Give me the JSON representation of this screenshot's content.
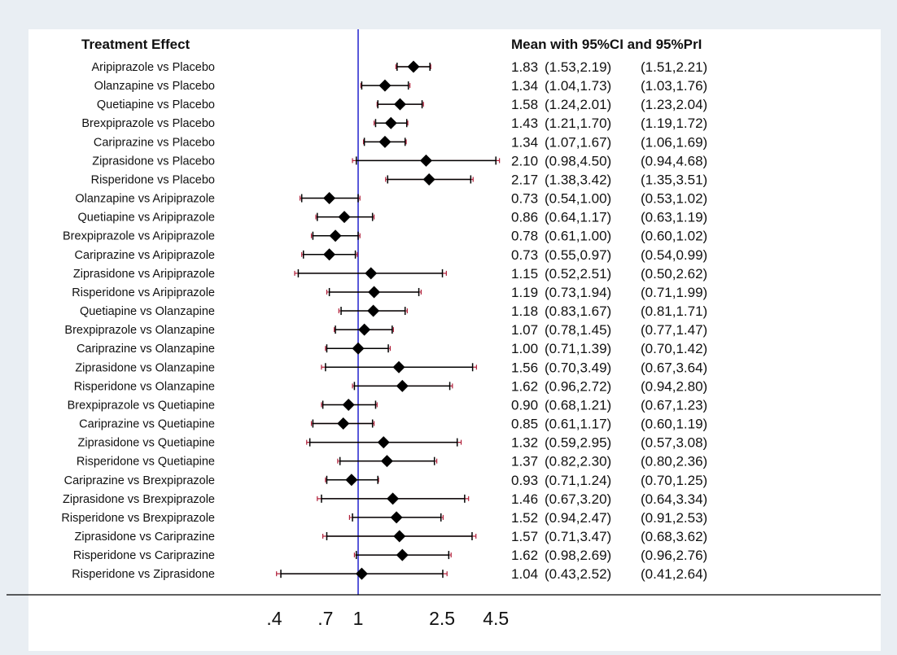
{
  "header": {
    "left": "Treatment Effect",
    "right": "Mean with 95%CI and 95%PrI"
  },
  "colors": {
    "background": "#e9eef3",
    "plot_background": "#ffffff",
    "reference_line": "#2f2fd0",
    "ci_line": "#000000",
    "pri_line": "#b0203a",
    "marker": "#000000"
  },
  "chart_data": {
    "type": "forest",
    "x_scale": "log",
    "reference_value": 1,
    "xlim": [
      0.4,
      4.5
    ],
    "xticks": [
      0.4,
      0.7,
      1,
      2.5,
      4.5
    ],
    "xtick_labels": [
      ".4",
      ".7",
      "1",
      "2.5",
      "4.5"
    ],
    "rows": [
      {
        "label": "Aripiprazole vs Placebo",
        "mean": 1.83,
        "ci": [
          1.53,
          2.19
        ],
        "pri": [
          1.51,
          2.21
        ],
        "mean_text": "1.83",
        "ci_text": "(1.53,2.19)",
        "pri_text": "(1.51,2.21)"
      },
      {
        "label": "Olanzapine vs Placebo",
        "mean": 1.34,
        "ci": [
          1.04,
          1.73
        ],
        "pri": [
          1.03,
          1.76
        ],
        "mean_text": "1.34",
        "ci_text": "(1.04,1.73)",
        "pri_text": "(1.03,1.76)"
      },
      {
        "label": "Quetiapine vs Placebo",
        "mean": 1.58,
        "ci": [
          1.24,
          2.01
        ],
        "pri": [
          1.23,
          2.04
        ],
        "mean_text": "1.58",
        "ci_text": "(1.24,2.01)",
        "pri_text": "(1.23,2.04)"
      },
      {
        "label": "Brexpiprazole vs Placebo",
        "mean": 1.43,
        "ci": [
          1.21,
          1.7
        ],
        "pri": [
          1.19,
          1.72
        ],
        "mean_text": "1.43",
        "ci_text": "(1.21,1.70)",
        "pri_text": "(1.19,1.72)"
      },
      {
        "label": "Cariprazine vs Placebo",
        "mean": 1.34,
        "ci": [
          1.07,
          1.67
        ],
        "pri": [
          1.06,
          1.69
        ],
        "mean_text": "1.34",
        "ci_text": "(1.07,1.67)",
        "pri_text": "(1.06,1.69)"
      },
      {
        "label": "Ziprasidone vs Placebo",
        "mean": 2.1,
        "ci": [
          0.98,
          4.5
        ],
        "pri": [
          0.94,
          4.68
        ],
        "mean_text": "2.10",
        "ci_text": "(0.98,4.50)",
        "pri_text": "(0.94,4.68)"
      },
      {
        "label": "Risperidone vs Placebo",
        "mean": 2.17,
        "ci": [
          1.38,
          3.42
        ],
        "pri": [
          1.35,
          3.51
        ],
        "mean_text": "2.17",
        "ci_text": "(1.38,3.42)",
        "pri_text": "(1.35,3.51)"
      },
      {
        "label": "Olanzapine vs Aripiprazole",
        "mean": 0.73,
        "ci": [
          0.54,
          1.0
        ],
        "pri": [
          0.53,
          1.02
        ],
        "mean_text": "0.73",
        "ci_text": "(0.54,1.00)",
        "pri_text": "(0.53,1.02)"
      },
      {
        "label": "Quetiapine vs Aripiprazole",
        "mean": 0.86,
        "ci": [
          0.64,
          1.17
        ],
        "pri": [
          0.63,
          1.19
        ],
        "mean_text": "0.86",
        "ci_text": "(0.64,1.17)",
        "pri_text": "(0.63,1.19)"
      },
      {
        "label": "Brexpiprazole vs Aripiprazole",
        "mean": 0.78,
        "ci": [
          0.61,
          1.0
        ],
        "pri": [
          0.6,
          1.02
        ],
        "mean_text": "0.78",
        "ci_text": "(0.61,1.00)",
        "pri_text": "(0.60,1.02)"
      },
      {
        "label": "Cariprazine vs Aripiprazole",
        "mean": 0.73,
        "ci": [
          0.55,
          0.97
        ],
        "pri": [
          0.54,
          0.99
        ],
        "mean_text": "0.73",
        "ci_text": "(0.55,0.97)",
        "pri_text": "(0.54,0.99)"
      },
      {
        "label": "Ziprasidone vs Aripiprazole",
        "mean": 1.15,
        "ci": [
          0.52,
          2.51
        ],
        "pri": [
          0.5,
          2.62
        ],
        "mean_text": "1.15",
        "ci_text": "(0.52,2.51)",
        "pri_text": "(0.50,2.62)"
      },
      {
        "label": "Risperidone vs Aripiprazole",
        "mean": 1.19,
        "ci": [
          0.73,
          1.94
        ],
        "pri": [
          0.71,
          1.99
        ],
        "mean_text": "1.19",
        "ci_text": "(0.73,1.94)",
        "pri_text": "(0.71,1.99)"
      },
      {
        "label": "Quetiapine vs Olanzapine",
        "mean": 1.18,
        "ci": [
          0.83,
          1.67
        ],
        "pri": [
          0.81,
          1.71
        ],
        "mean_text": "1.18",
        "ci_text": "(0.83,1.67)",
        "pri_text": "(0.81,1.71)"
      },
      {
        "label": "Brexpiprazole vs Olanzapine",
        "mean": 1.07,
        "ci": [
          0.78,
          1.45
        ],
        "pri": [
          0.77,
          1.47
        ],
        "mean_text": "1.07",
        "ci_text": "(0.78,1.45)",
        "pri_text": "(0.77,1.47)"
      },
      {
        "label": "Cariprazine vs Olanzapine",
        "mean": 1.0,
        "ci": [
          0.71,
          1.39
        ],
        "pri": [
          0.7,
          1.42
        ],
        "mean_text": "1.00",
        "ci_text": "(0.71,1.39)",
        "pri_text": "(0.70,1.42)"
      },
      {
        "label": "Ziprasidone vs Olanzapine",
        "mean": 1.56,
        "ci": [
          0.7,
          3.49
        ],
        "pri": [
          0.67,
          3.64
        ],
        "mean_text": "1.56",
        "ci_text": "(0.70,3.49)",
        "pri_text": "(0.67,3.64)"
      },
      {
        "label": "Risperidone vs Olanzapine",
        "mean": 1.62,
        "ci": [
          0.96,
          2.72
        ],
        "pri": [
          0.94,
          2.8
        ],
        "mean_text": "1.62",
        "ci_text": "(0.96,2.72)",
        "pri_text": "(0.94,2.80)"
      },
      {
        "label": "Brexpiprazole vs Quetiapine",
        "mean": 0.9,
        "ci": [
          0.68,
          1.21
        ],
        "pri": [
          0.67,
          1.23
        ],
        "mean_text": "0.90",
        "ci_text": "(0.68,1.21)",
        "pri_text": "(0.67,1.23)"
      },
      {
        "label": "Cariprazine vs Quetiapine",
        "mean": 0.85,
        "ci": [
          0.61,
          1.17
        ],
        "pri": [
          0.6,
          1.19
        ],
        "mean_text": "0.85",
        "ci_text": "(0.61,1.17)",
        "pri_text": "(0.60,1.19)"
      },
      {
        "label": "Ziprasidone vs Quetiapine",
        "mean": 1.32,
        "ci": [
          0.59,
          2.95
        ],
        "pri": [
          0.57,
          3.08
        ],
        "mean_text": "1.32",
        "ci_text": "(0.59,2.95)",
        "pri_text": "(0.57,3.08)"
      },
      {
        "label": "Risperidone vs Quetiapine",
        "mean": 1.37,
        "ci": [
          0.82,
          2.3
        ],
        "pri": [
          0.8,
          2.36
        ],
        "mean_text": "1.37",
        "ci_text": "(0.82,2.30)",
        "pri_text": "(0.80,2.36)"
      },
      {
        "label": "Cariprazine vs Brexpiprazole",
        "mean": 0.93,
        "ci": [
          0.71,
          1.24
        ],
        "pri": [
          0.7,
          1.25
        ],
        "mean_text": "0.93",
        "ci_text": "(0.71,1.24)",
        "pri_text": "(0.70,1.25)"
      },
      {
        "label": "Ziprasidone vs Brexpiprazole",
        "mean": 1.46,
        "ci": [
          0.67,
          3.2
        ],
        "pri": [
          0.64,
          3.34
        ],
        "mean_text": "1.46",
        "ci_text": "(0.67,3.20)",
        "pri_text": "(0.64,3.34)"
      },
      {
        "label": "Risperidone vs Brexpiprazole",
        "mean": 1.52,
        "ci": [
          0.94,
          2.47
        ],
        "pri": [
          0.91,
          2.53
        ],
        "mean_text": "1.52",
        "ci_text": "(0.94,2.47)",
        "pri_text": "(0.91,2.53)"
      },
      {
        "label": "Ziprasidone vs Cariprazine",
        "mean": 1.57,
        "ci": [
          0.71,
          3.47
        ],
        "pri": [
          0.68,
          3.62
        ],
        "mean_text": "1.57",
        "ci_text": "(0.71,3.47)",
        "pri_text": "(0.68,3.62)"
      },
      {
        "label": "Risperidone vs Cariprazine",
        "mean": 1.62,
        "ci": [
          0.98,
          2.69
        ],
        "pri": [
          0.96,
          2.76
        ],
        "mean_text": "1.62",
        "ci_text": "(0.98,2.69)",
        "pri_text": "(0.96,2.76)"
      },
      {
        "label": "Risperidone vs Ziprasidone",
        "mean": 1.04,
        "ci": [
          0.43,
          2.52
        ],
        "pri": [
          0.41,
          2.64
        ],
        "mean_text": "1.04",
        "ci_text": "(0.43,2.52)",
        "pri_text": "(0.41,2.64)"
      }
    ]
  }
}
